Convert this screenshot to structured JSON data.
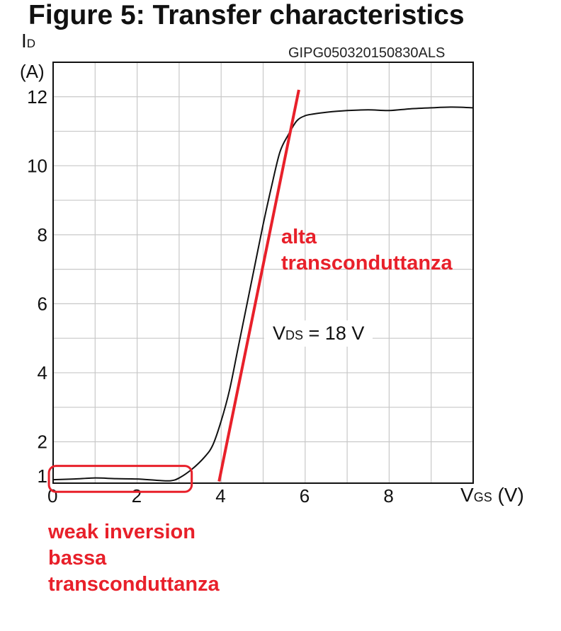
{
  "figure": {
    "title": "Figure 5: Transfer characteristics",
    "code": "GIPG050320150830ALS"
  },
  "axis": {
    "y_main": "I",
    "y_sub": "D",
    "y_unit": "(A)",
    "x_main": "V",
    "x_sub": "GS",
    "x_unit": "(V)"
  },
  "condition": {
    "main": "V",
    "sub": "DS",
    "rest": " = 18 V"
  },
  "annotations": {
    "high": [
      "alta",
      "transconduttanza"
    ],
    "weak": [
      "weak inversion",
      "bassa",
      "transconduttanza"
    ]
  },
  "colors": {
    "curve": "#111111",
    "grid": "#c8c8c8",
    "annotation": "#e8202a"
  },
  "chart_data": {
    "type": "line",
    "title": "Figure 5: Transfer characteristics",
    "xlabel": "VGS (V)",
    "ylabel": "ID (A)",
    "xlim": [
      0,
      10
    ],
    "ylim": [
      0.8,
      13
    ],
    "x_ticks": [
      0,
      2,
      4,
      6,
      8
    ],
    "x_tick_labels": [
      "0",
      "2",
      "4",
      "6",
      "8"
    ],
    "y_ticks": [
      1,
      2,
      4,
      6,
      8,
      10,
      12
    ],
    "y_tick_labels": [
      "1",
      "2",
      "4",
      "6",
      "8",
      "10",
      "12"
    ],
    "grid": true,
    "series": [
      {
        "x": [
          0,
          0.5,
          1,
          1.5,
          2,
          2.5,
          2.8,
          3.0,
          3.3,
          3.6,
          3.8,
          4.0,
          4.2,
          4.4,
          4.6,
          4.8,
          5.0,
          5.2,
          5.4,
          5.6,
          5.8,
          6.0,
          6.2,
          6.5,
          7.0,
          7.5,
          8.0,
          8.5,
          9.0,
          9.5,
          10.0
        ],
        "y": [
          0.9,
          0.92,
          0.95,
          0.93,
          0.92,
          0.88,
          0.87,
          0.95,
          1.2,
          1.55,
          1.9,
          2.6,
          3.5,
          4.7,
          5.9,
          7.1,
          8.3,
          9.4,
          10.4,
          10.9,
          11.3,
          11.45,
          11.5,
          11.55,
          11.6,
          11.62,
          11.6,
          11.65,
          11.68,
          11.7,
          11.68
        ]
      }
    ],
    "tangent_line": {
      "x": [
        3.95,
        5.85
      ],
      "y": [
        0.85,
        12.2
      ]
    },
    "region_box": {
      "x": [
        -0.1,
        3.3
      ],
      "y": [
        0.55,
        1.3
      ]
    }
  }
}
